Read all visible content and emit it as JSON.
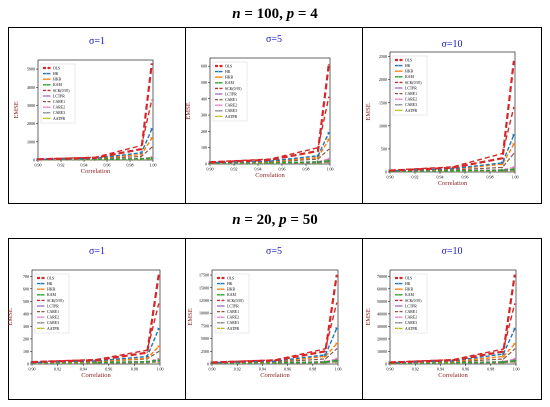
{
  "blocks": [
    {
      "title_parts": [
        "n",
        " = 100, ",
        "p",
        " = 4"
      ]
    },
    {
      "title_parts": [
        "n",
        " = 20, ",
        "p",
        " = 50"
      ]
    }
  ],
  "colors": {
    "OLS": "#d62728",
    "HK": "#1f77b4",
    "HKB": "#ff7f0e",
    "KAM": "#2ca02c",
    "SCK": "#d62728",
    "LCTPR": "#9467bd",
    "CARE1": "#8c564b",
    "CARE2": "#e377c2",
    "CARE3": "#7f7f7f",
    "AATPR": "#bcbd22",
    "sigma_title": "#1515c0",
    "axis_label": "#8b1a1a"
  },
  "chart_data": [
    {
      "type": "line",
      "panel": "top-left",
      "title": "σ=1",
      "xlabel": "Correlation",
      "ylabel": "EMSE",
      "x": [
        0.9,
        0.95,
        0.99,
        0.999
      ],
      "xticks": [
        "0.90",
        "0.92",
        "0.94",
        "0.96",
        "0.98",
        "1.00"
      ],
      "xlim": [
        0.9,
        1.0
      ],
      "ylim": [
        0,
        5500
      ],
      "yticks": [
        "0",
        "1000",
        "2000",
        "3000",
        "4000",
        "5000"
      ],
      "legend_position": "top-left",
      "series": [
        {
          "name": "OLS",
          "values": [
            40,
            120,
            600,
            5300
          ]
        },
        {
          "name": "HK",
          "values": [
            30,
            90,
            400,
            1700
          ]
        },
        {
          "name": "HKB",
          "values": [
            30,
            80,
            300,
            1200
          ]
        },
        {
          "name": "KAM",
          "values": [
            20,
            40,
            60,
            100
          ]
        },
        {
          "name": "SCK(0.95)",
          "values": [
            50,
            150,
            800,
            3300
          ]
        },
        {
          "name": "LCTPR",
          "values": [
            20,
            40,
            60,
            90
          ]
        },
        {
          "name": "CARE1",
          "values": [
            30,
            60,
            200,
            700
          ]
        },
        {
          "name": "CARE2",
          "values": [
            20,
            40,
            80,
            150
          ]
        },
        {
          "name": "CARE3",
          "values": [
            20,
            30,
            50,
            80
          ]
        },
        {
          "name": "AATPR",
          "values": [
            10,
            20,
            30,
            50
          ]
        }
      ]
    },
    {
      "type": "line",
      "panel": "top-middle",
      "title": "σ=5",
      "xlabel": "Correlation",
      "ylabel": "EMSE",
      "x": [
        0.9,
        0.95,
        0.99,
        0.999
      ],
      "xticks": [
        "0.90",
        "0.92",
        "0.94",
        "0.96",
        "0.98",
        "1.00"
      ],
      "xlim": [
        0.9,
        1.0
      ],
      "ylim": [
        0,
        650
      ],
      "yticks": [
        "0",
        "100",
        "200",
        "300",
        "400",
        "500",
        "600"
      ],
      "legend_position": "top-left",
      "series": [
        {
          "name": "OLS",
          "values": [
            10,
            25,
            80,
            610
          ]
        },
        {
          "name": "HK",
          "values": [
            8,
            18,
            50,
            190
          ]
        },
        {
          "name": "HKB",
          "values": [
            8,
            15,
            40,
            150
          ]
        },
        {
          "name": "KAM",
          "values": [
            5,
            8,
            12,
            20
          ]
        },
        {
          "name": "SCK(0.95)",
          "values": [
            12,
            30,
            100,
            410
          ]
        },
        {
          "name": "LCTPR",
          "values": [
            5,
            7,
            10,
            15
          ]
        },
        {
          "name": "CARE1",
          "values": [
            7,
            12,
            30,
            90
          ]
        },
        {
          "name": "CARE2",
          "values": [
            5,
            8,
            15,
            30
          ]
        },
        {
          "name": "CARE3",
          "values": [
            4,
            6,
            9,
            14
          ]
        },
        {
          "name": "AATPR",
          "values": [
            3,
            5,
            7,
            10
          ]
        }
      ]
    },
    {
      "type": "line",
      "panel": "top-right",
      "title": "σ=10",
      "xlabel": "Correlation",
      "ylabel": "EMSE",
      "x": [
        0.9,
        0.95,
        0.99,
        0.999
      ],
      "xticks": [
        "0.90",
        "0.92",
        "0.94",
        "0.96",
        "0.98",
        "1.00"
      ],
      "xlim": [
        0.9,
        1.0
      ],
      "ylim": [
        0,
        2600
      ],
      "yticks": [
        "0",
        "500",
        "1000",
        "1500",
        "2000",
        "2500"
      ],
      "legend_position": "top-left",
      "series": [
        {
          "name": "OLS",
          "values": [
            30,
            90,
            300,
            2400
          ]
        },
        {
          "name": "HK",
          "values": [
            25,
            70,
            200,
            800
          ]
        },
        {
          "name": "HKB",
          "values": [
            25,
            60,
            170,
            600
          ]
        },
        {
          "name": "KAM",
          "values": [
            15,
            25,
            40,
            60
          ]
        },
        {
          "name": "SCK(0.95)",
          "values": [
            40,
            110,
            400,
            1400
          ]
        },
        {
          "name": "LCTPR",
          "values": [
            15,
            20,
            30,
            50
          ]
        },
        {
          "name": "CARE1",
          "values": [
            20,
            45,
            100,
            400
          ]
        },
        {
          "name": "CARE2",
          "values": [
            15,
            25,
            50,
            100
          ]
        },
        {
          "name": "CARE3",
          "values": [
            10,
            20,
            30,
            45
          ]
        },
        {
          "name": "AATPR",
          "values": [
            8,
            12,
            20,
            30
          ]
        }
      ]
    },
    {
      "type": "line",
      "panel": "bottom-left",
      "title": "σ=1",
      "xlabel": "Correlation",
      "ylabel": "EMSE",
      "x": [
        0.9,
        0.95,
        0.99,
        0.999
      ],
      "xticks": [
        "0.90",
        "0.92",
        "0.94",
        "0.96",
        "0.98",
        "1.00"
      ],
      "xlim": [
        0.9,
        1.0
      ],
      "ylim": [
        0,
        750
      ],
      "yticks": [
        "0",
        "100",
        "200",
        "300",
        "400",
        "500",
        "600",
        "700"
      ],
      "legend_position": "top-left",
      "series": [
        {
          "name": "OLS",
          "values": [
            15,
            30,
            90,
            710
          ]
        },
        {
          "name": "HK",
          "values": [
            12,
            25,
            60,
            280
          ]
        },
        {
          "name": "HKB",
          "values": [
            12,
            20,
            45,
            140
          ]
        },
        {
          "name": "KAM",
          "values": [
            8,
            12,
            18,
            30
          ]
        },
        {
          "name": "SCK(0.95)",
          "values": [
            18,
            35,
            110,
            480
          ]
        },
        {
          "name": "LCTPR",
          "values": [
            8,
            10,
            15,
            25
          ]
        },
        {
          "name": "CARE1",
          "values": [
            10,
            18,
            40,
            100
          ]
        },
        {
          "name": "CARE2",
          "values": [
            8,
            12,
            20,
            40
          ]
        },
        {
          "name": "CARE3",
          "values": [
            6,
            9,
            13,
            20
          ]
        },
        {
          "name": "AATPR",
          "values": [
            5,
            7,
            10,
            15
          ]
        }
      ]
    },
    {
      "type": "line",
      "panel": "bottom-middle",
      "title": "σ=5",
      "xlabel": "Correlation",
      "ylabel": "EMSE",
      "x": [
        0.9,
        0.95,
        0.99,
        0.999
      ],
      "xticks": [
        "0.90",
        "0.92",
        "0.94",
        "0.96",
        "0.98",
        "1.00"
      ],
      "xlim": [
        0.9,
        1.0
      ],
      "ylim": [
        0,
        18500
      ],
      "yticks": [
        "0",
        "2500",
        "5000",
        "7500",
        "10000",
        "12500",
        "15000",
        "17500"
      ],
      "legend_position": "top-left",
      "series": [
        {
          "name": "OLS",
          "values": [
            300,
            700,
            2500,
            17500
          ]
        },
        {
          "name": "HK",
          "values": [
            250,
            550,
            1800,
            7000
          ]
        },
        {
          "name": "HKB",
          "values": [
            250,
            500,
            1500,
            4000
          ]
        },
        {
          "name": "KAM",
          "values": [
            150,
            250,
            400,
            700
          ]
        },
        {
          "name": "SCK(0.95)",
          "values": [
            350,
            800,
            3000,
            12000
          ]
        },
        {
          "name": "LCTPR",
          "values": [
            150,
            220,
            350,
            600
          ]
        },
        {
          "name": "CARE1",
          "values": [
            200,
            400,
            1000,
            3000
          ]
        },
        {
          "name": "CARE2",
          "values": [
            150,
            250,
            500,
            1000
          ]
        },
        {
          "name": "CARE3",
          "values": [
            120,
            200,
            300,
            500
          ]
        },
        {
          "name": "AATPR",
          "values": [
            100,
            150,
            250,
            400
          ]
        }
      ]
    },
    {
      "type": "line",
      "panel": "bottom-right",
      "title": "σ=10",
      "xlabel": "Correlation",
      "ylabel": "EMSE",
      "x": [
        0.9,
        0.95,
        0.99,
        0.999
      ],
      "xticks": [
        "0.90",
        "0.92",
        "0.94",
        "0.96",
        "0.98",
        "1.00"
      ],
      "xlim": [
        0.9,
        1.0
      ],
      "ylim": [
        0,
        75000
      ],
      "yticks": [
        "0",
        "10000",
        "20000",
        "30000",
        "40000",
        "50000",
        "60000",
        "70000"
      ],
      "legend_position": "top-left",
      "series": [
        {
          "name": "OLS",
          "values": [
            1200,
            3000,
            10000,
            71000
          ]
        },
        {
          "name": "HK",
          "values": [
            1000,
            2500,
            8000,
            28000
          ]
        },
        {
          "name": "HKB",
          "values": [
            1000,
            2000,
            6000,
            16000
          ]
        },
        {
          "name": "KAM",
          "values": [
            600,
            1000,
            1600,
            2800
          ]
        },
        {
          "name": "SCK(0.95)",
          "values": [
            1400,
            3500,
            12000,
            48000
          ]
        },
        {
          "name": "LCTPR",
          "values": [
            600,
            900,
            1400,
            2400
          ]
        },
        {
          "name": "CARE1",
          "values": [
            800,
            1600,
            4000,
            12000
          ]
        },
        {
          "name": "CARE2",
          "values": [
            600,
            1000,
            2000,
            4000
          ]
        },
        {
          "name": "CARE3",
          "values": [
            500,
            800,
            1200,
            2000
          ]
        },
        {
          "name": "AATPR",
          "values": [
            400,
            600,
            1000,
            1600
          ]
        }
      ]
    }
  ]
}
